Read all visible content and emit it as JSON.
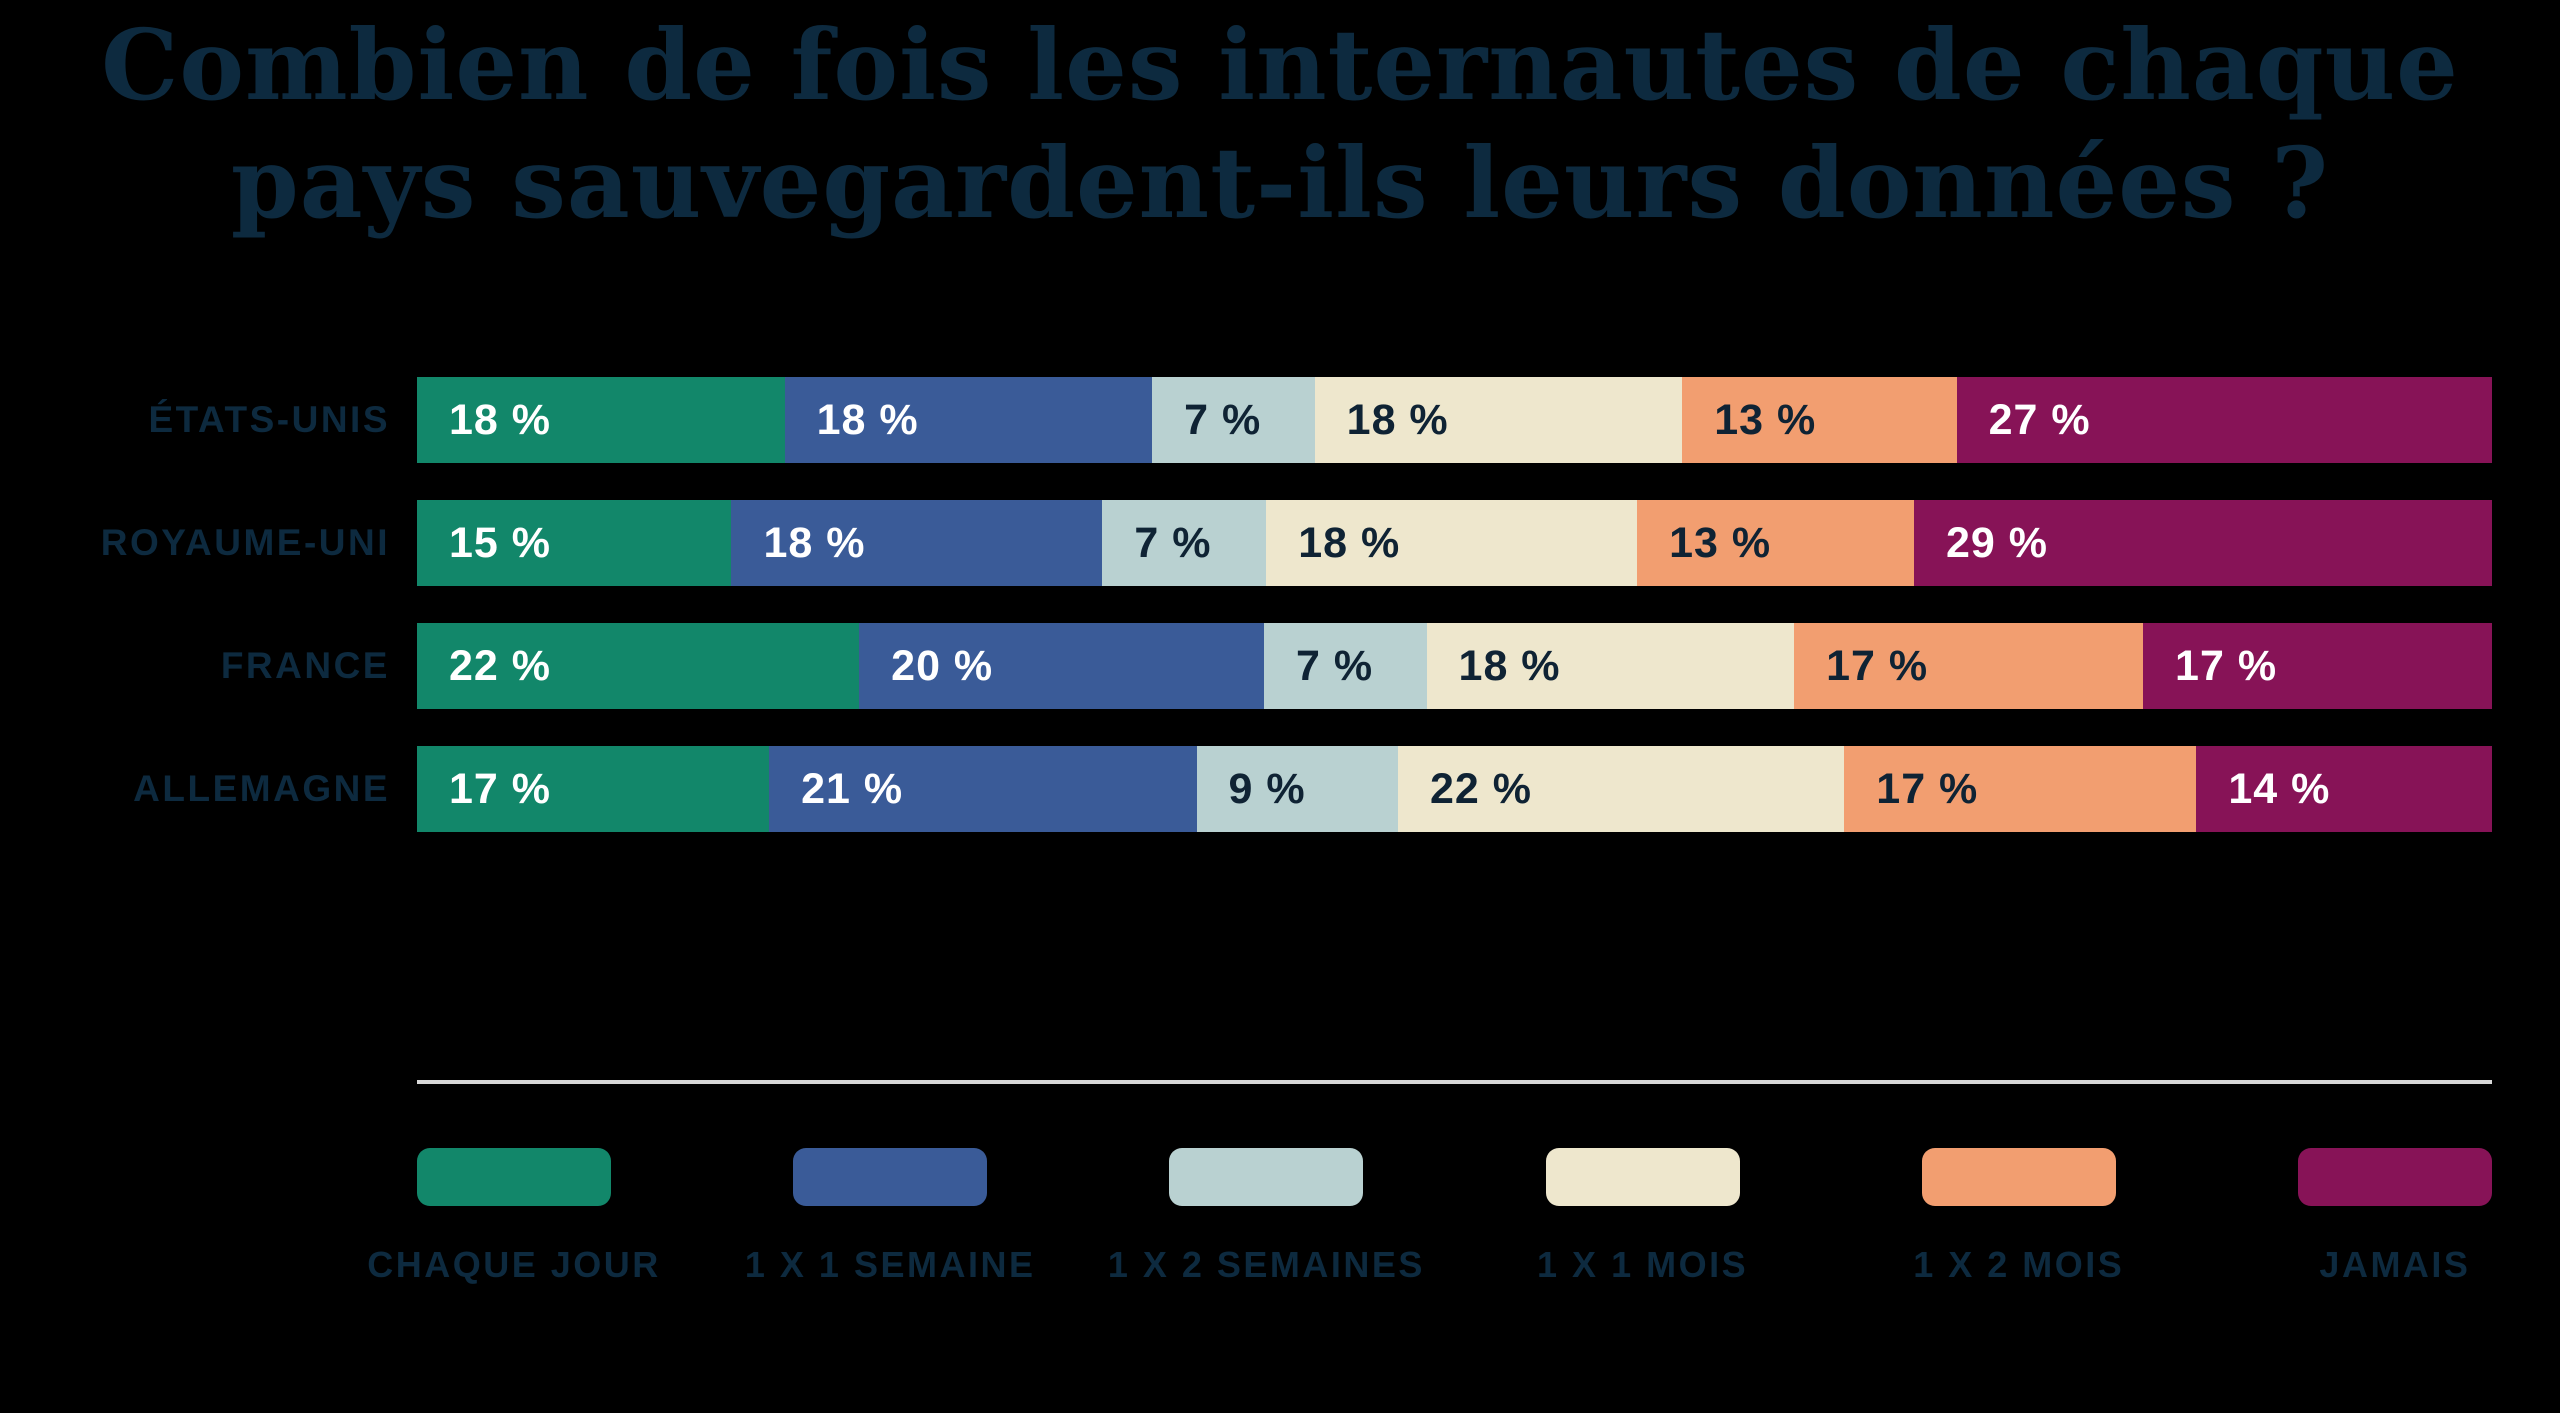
{
  "title": {
    "line1": "Combien de fois les internautes de chaque",
    "line2": "pays sauvegardent-ils leurs données ?"
  },
  "colors": {
    "background": "#000000",
    "title_text": "#0D2A3F",
    "row_label_text": "#0D2A3F",
    "legend_label_text": "#0D2A3F",
    "separator": "#D8D8D8",
    "value_text_light": "#FFFFFF",
    "value_text_dark": "#0F2334"
  },
  "chart_data": {
    "type": "bar",
    "subtype": "stacked-horizontal",
    "unit": "%",
    "value_label_suffix": " %",
    "grid": false,
    "legend_position": "bottom",
    "categories": [
      "ÉTATS-UNIS",
      "ROYAUME-UNI",
      "FRANCE",
      "ALLEMAGNE"
    ],
    "series": [
      {
        "name": "CHAQUE JOUR",
        "color": "#12876A",
        "label_color": "#FFFFFF",
        "values": [
          18,
          15,
          22,
          17
        ]
      },
      {
        "name": "1 X 1 SEMAINE",
        "color": "#3A5B98",
        "label_color": "#FFFFFF",
        "values": [
          18,
          18,
          20,
          21
        ]
      },
      {
        "name": "1 X 2 SEMAINES",
        "color": "#B9D1D1",
        "label_color": "#0F2334",
        "values": [
          7,
          7,
          7,
          9
        ]
      },
      {
        "name": "1 X 1 MOIS",
        "color": "#EEE7CD",
        "label_color": "#0F2334",
        "values": [
          18,
          18,
          18,
          22
        ]
      },
      {
        "name": "1 X 2 MOIS",
        "color": "#F29E70",
        "label_color": "#0F2334",
        "values": [
          13,
          13,
          17,
          17
        ]
      },
      {
        "name": "JAMAIS",
        "color": "#871357",
        "label_color": "#FFFFFF",
        "values": [
          27,
          29,
          17,
          14
        ]
      }
    ]
  }
}
